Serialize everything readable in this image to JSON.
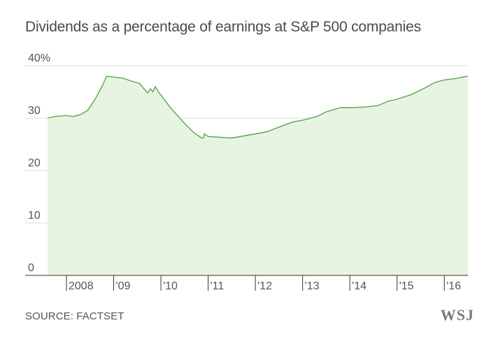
{
  "colors": {
    "line": "#5aa64f",
    "fill": "#e8f4e2",
    "grid": "#dcdcdc",
    "text": "#555555",
    "axis": "#333333"
  },
  "chart_data": {
    "type": "area",
    "title": "Dividends as a percentage of earnings at S&P 500 companies",
    "ylabel": "",
    "xlabel": "",
    "ylim": [
      0,
      40
    ],
    "xlim": [
      2007.6,
      2016.5
    ],
    "yticks": [
      {
        "value": 40,
        "label": "40%"
      },
      {
        "value": 30,
        "label": "30"
      },
      {
        "value": 20,
        "label": "20"
      },
      {
        "value": 10,
        "label": "10"
      },
      {
        "value": 0,
        "label": "0"
      }
    ],
    "xticks": [
      {
        "value": 2008.0,
        "label": "2008"
      },
      {
        "value": 2009.0,
        "label": "'09"
      },
      {
        "value": 2010.0,
        "label": "'10"
      },
      {
        "value": 2011.0,
        "label": "'11"
      },
      {
        "value": 2012.0,
        "label": "'12"
      },
      {
        "value": 2013.0,
        "label": "'13"
      },
      {
        "value": 2014.0,
        "label": "'14"
      },
      {
        "value": 2015.0,
        "label": "'15"
      },
      {
        "value": 2016.0,
        "label": "'16"
      }
    ],
    "grid": true,
    "series": [
      {
        "points": [
          [
            2007.6,
            30.0
          ],
          [
            2007.75,
            30.3
          ],
          [
            2008.0,
            30.5
          ],
          [
            2008.15,
            30.3
          ],
          [
            2008.3,
            30.7
          ],
          [
            2008.45,
            31.5
          ],
          [
            2008.6,
            33.5
          ],
          [
            2008.75,
            36.0
          ],
          [
            2008.85,
            38.0
          ],
          [
            2008.95,
            37.9
          ],
          [
            2009.2,
            37.6
          ],
          [
            2009.4,
            37.0
          ],
          [
            2009.55,
            36.6
          ],
          [
            2009.65,
            35.5
          ],
          [
            2009.72,
            34.8
          ],
          [
            2009.78,
            35.6
          ],
          [
            2009.83,
            35.0
          ],
          [
            2009.88,
            36.0
          ],
          [
            2009.95,
            35.0
          ],
          [
            2010.2,
            32.0
          ],
          [
            2010.5,
            29.0
          ],
          [
            2010.7,
            27.2
          ],
          [
            2010.85,
            26.3
          ],
          [
            2010.9,
            26.2
          ],
          [
            2010.92,
            27.0
          ],
          [
            2011.0,
            26.5
          ],
          [
            2011.5,
            26.2
          ],
          [
            2012.0,
            27.0
          ],
          [
            2012.25,
            27.4
          ],
          [
            2012.5,
            28.3
          ],
          [
            2012.8,
            29.3
          ],
          [
            2013.0,
            29.6
          ],
          [
            2013.3,
            30.3
          ],
          [
            2013.5,
            31.2
          ],
          [
            2013.8,
            32.0
          ],
          [
            2014.0,
            32.0
          ],
          [
            2014.3,
            32.1
          ],
          [
            2014.6,
            32.4
          ],
          [
            2014.8,
            33.2
          ],
          [
            2015.0,
            33.6
          ],
          [
            2015.3,
            34.5
          ],
          [
            2015.6,
            35.8
          ],
          [
            2015.8,
            36.8
          ],
          [
            2016.0,
            37.3
          ],
          [
            2016.2,
            37.5
          ],
          [
            2016.5,
            38.0
          ]
        ]
      }
    ]
  },
  "footer": {
    "source": "SOURCE: FACTSET",
    "logo": "WSJ"
  }
}
